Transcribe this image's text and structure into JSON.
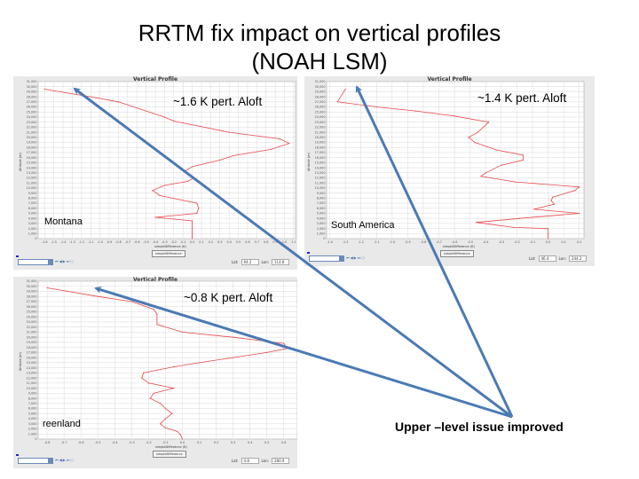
{
  "slide": {
    "title_line1": "RRTM fix impact on vertical profiles",
    "title_line2": "(NOAH LSM)",
    "callout": "Upper –level issue improved"
  },
  "colors": {
    "profile_line": "#e8474a",
    "arrow": "#4a7ab5",
    "panel_bg": "#e9e9e9",
    "grid": "#cfcfcf"
  },
  "chart_data": [
    {
      "type": "line",
      "title": "Vertical Profile",
      "region_label": "Montana",
      "annotation": "~1.6 K pert. Aloft",
      "xlabel": "simpleDifference (K)",
      "ylabel": "Altitude (m)",
      "button_label": "simpleDifference",
      "date_value": "",
      "lat_label": "Lat:",
      "lat": "64.2",
      "lon_label": "Lon:",
      "lon": "114.8",
      "xlim": [
        -1.67,
        1.12
      ],
      "ylim": [
        0,
        31000
      ],
      "xticks": [
        -1.6,
        -1.5,
        -1.4,
        -1.3,
        -1.2,
        -1.1,
        -1.0,
        -0.9,
        -0.8,
        -0.7,
        -0.6,
        -0.5,
        -0.4,
        -0.3,
        -0.2,
        -0.1,
        0.0,
        0.1,
        0.2,
        0.3,
        0.4,
        0.5,
        0.6,
        0.7,
        0.8,
        0.9,
        1.0,
        1.1
      ],
      "grid": true,
      "points": [
        [
          0,
          0
        ],
        [
          0,
          1000
        ],
        [
          0,
          2000
        ],
        [
          0,
          3000
        ],
        [
          0,
          3500
        ],
        [
          -0.4,
          4200
        ],
        [
          0.05,
          5000
        ],
        [
          0.07,
          6000
        ],
        [
          0.05,
          7000
        ],
        [
          -0.35,
          8500
        ],
        [
          -0.43,
          9500
        ],
        [
          -0.3,
          10500
        ],
        [
          -0.05,
          11300
        ],
        [
          0.02,
          12000
        ],
        [
          -0.07,
          13400
        ],
        [
          0,
          14200
        ],
        [
          0.3,
          15500
        ],
        [
          0.45,
          16400
        ],
        [
          0.85,
          17600
        ],
        [
          1.05,
          18800
        ],
        [
          0.95,
          19700
        ],
        [
          0.4,
          21000
        ],
        [
          -0.2,
          23200
        ],
        [
          -0.3,
          24000
        ],
        [
          -0.8,
          27000
        ],
        [
          -1.1,
          28000
        ],
        [
          -1.6,
          29500
        ]
      ]
    },
    {
      "type": "line",
      "title": "Vertical Profile",
      "region_label": "South America",
      "annotation": "~1.4 K pert. Aloft",
      "xlabel": "simpleDifference (K)",
      "ylabel": "Altitude (m)",
      "button_label": "simpleDifference",
      "date_value": "",
      "lat_label": "Lat:",
      "lat": "46.4",
      "lon_label": "Lon:",
      "lon": "244.2",
      "xlim": [
        -1.42,
        0.23
      ],
      "ylim": [
        0,
        31000
      ],
      "xticks": [
        -1.4,
        -1.3,
        -1.2,
        -1.1,
        -1.0,
        -0.9,
        -0.8,
        -0.7,
        -0.6,
        -0.5,
        -0.4,
        -0.3,
        -0.2,
        -0.1,
        0.0,
        0.1,
        0.2
      ],
      "grid": true,
      "points": [
        [
          0,
          0
        ],
        [
          0,
          1000
        ],
        [
          0,
          2000
        ],
        [
          -0.22,
          2200
        ],
        [
          -0.46,
          3200
        ],
        [
          -0.18,
          4000
        ],
        [
          0.2,
          5000
        ],
        [
          -0.09,
          5800
        ],
        [
          0.04,
          6800
        ],
        [
          0.02,
          7500
        ],
        [
          0.03,
          8200
        ],
        [
          0.17,
          9500
        ],
        [
          0.2,
          10200
        ],
        [
          -0.21,
          11200
        ],
        [
          -0.43,
          12300
        ],
        [
          -0.4,
          13000
        ],
        [
          -0.3,
          14500
        ],
        [
          -0.16,
          15500
        ],
        [
          -0.16,
          16500
        ],
        [
          -0.33,
          17500
        ],
        [
          -0.47,
          19000
        ],
        [
          -0.51,
          20000
        ],
        [
          -0.45,
          21000
        ],
        [
          -0.38,
          23000
        ],
        [
          -0.6,
          24200
        ],
        [
          -0.85,
          25200
        ],
        [
          -1.1,
          26000
        ],
        [
          -1.35,
          27000
        ],
        [
          -1.3,
          29500
        ]
      ]
    },
    {
      "type": "line",
      "title": "Vertical Profile",
      "region_label": "reenland",
      "annotation": "~0.8 K pert. Aloft",
      "xlabel": "simpleDifference (K)",
      "ylabel": "Altitude (m)",
      "button_label": "simpleDifference",
      "date_value": "",
      "lat_label": "Lat:",
      "lat": "4.8",
      "lon_label": "Lon:",
      "lon": "280.9",
      "xlim": [
        -0.853,
        0.68
      ],
      "ylim": [
        0,
        31000
      ],
      "xticks": [
        -0.8,
        -0.7,
        -0.6,
        -0.5,
        -0.4,
        -0.3,
        -0.2,
        -0.1,
        0.0,
        0.1,
        0.2,
        0.3,
        0.4,
        0.5,
        0.6
      ],
      "grid": true,
      "points": [
        [
          0,
          0
        ],
        [
          -0.01,
          800
        ],
        [
          -0.03,
          1500
        ],
        [
          -0.1,
          2200
        ],
        [
          -0.13,
          3000
        ],
        [
          -0.1,
          4000
        ],
        [
          -0.06,
          5000
        ],
        [
          -0.1,
          6000
        ],
        [
          -0.13,
          7000
        ],
        [
          -0.19,
          8000
        ],
        [
          -0.17,
          9000
        ],
        [
          -0.05,
          10000
        ],
        [
          -0.2,
          11000
        ],
        [
          -0.24,
          12000
        ],
        [
          -0.23,
          13000
        ],
        [
          -0.05,
          14200
        ],
        [
          0.1,
          15000
        ],
        [
          0.3,
          16000
        ],
        [
          0.5,
          17000
        ],
        [
          0.62,
          17800
        ],
        [
          0.6,
          18800
        ],
        [
          0.3,
          20000
        ],
        [
          0,
          21000
        ],
        [
          -0.15,
          22500
        ],
        [
          -0.15,
          23500
        ],
        [
          -0.15,
          24500
        ],
        [
          -0.17,
          25500
        ],
        [
          -0.3,
          27000
        ],
        [
          -0.5,
          28000
        ],
        [
          -0.8,
          29700
        ]
      ]
    }
  ]
}
